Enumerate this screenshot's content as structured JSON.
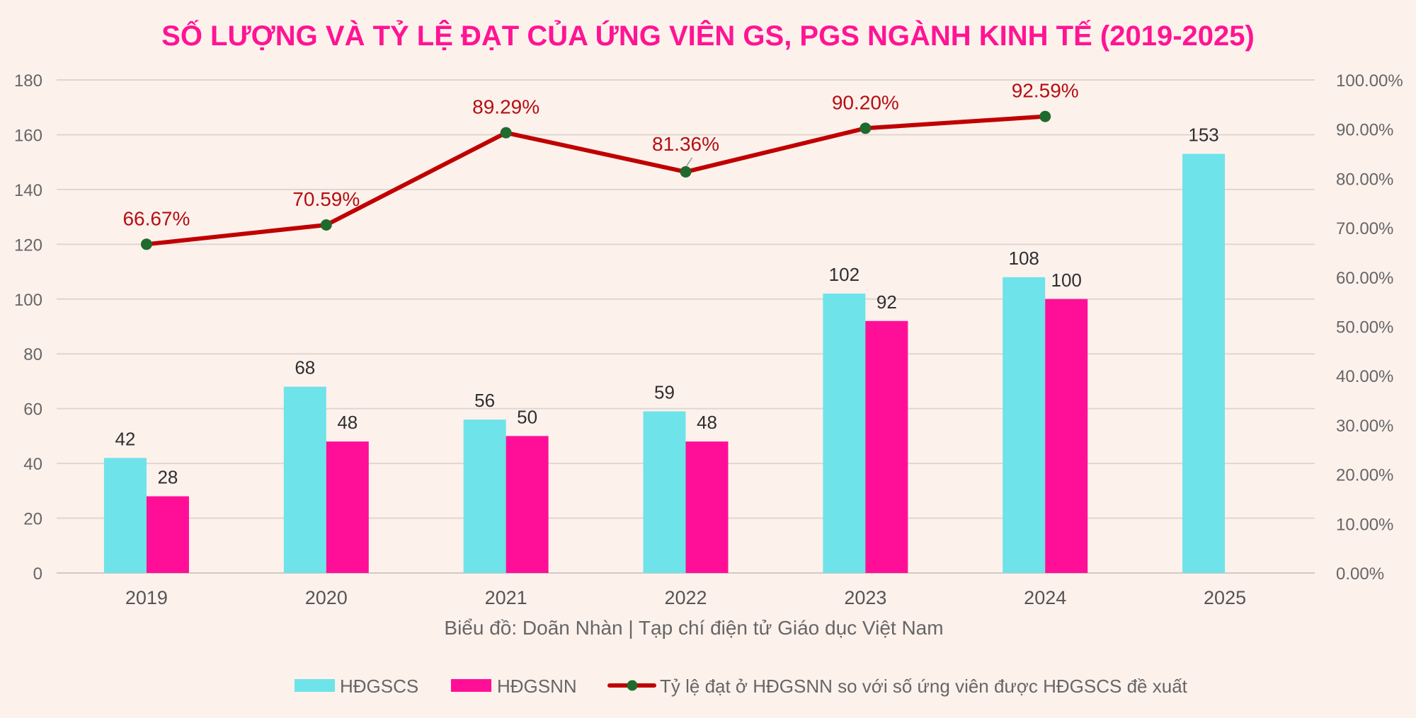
{
  "chart_data": {
    "type": "bar",
    "title": "SỐ LƯỢNG VÀ TỶ LỆ ĐẠT CỦA ỨNG VIÊN GS, PGS NGÀNH KINH TẾ (2019-2025)",
    "subtitle": "Biểu đồ: Doãn Nhàn | Tạp chí điện tử Giáo dục Việt Nam",
    "categories": [
      "2019",
      "2020",
      "2021",
      "2022",
      "2023",
      "2024",
      "2025"
    ],
    "y_left_ticks": [
      "0",
      "20",
      "40",
      "60",
      "80",
      "100",
      "120",
      "140",
      "160",
      "180"
    ],
    "y_right_ticks": [
      "0.00%",
      "10.00%",
      "20.00%",
      "30.00%",
      "40.00%",
      "50.00%",
      "60.00%",
      "70.00%",
      "80.00%",
      "90.00%",
      "100.00%"
    ],
    "ylim": [
      0,
      180
    ],
    "y2lim": [
      0,
      100
    ],
    "grid": true,
    "legend_position": "bottom",
    "series": [
      {
        "name": "HĐGSCS",
        "type": "bar",
        "axis": "left",
        "color": "#6ee3e9",
        "values": [
          42,
          68,
          56,
          59,
          102,
          108,
          153
        ],
        "labels": [
          "42",
          "68",
          "56",
          "59",
          "102",
          "108",
          "153"
        ]
      },
      {
        "name": "HĐGSNN",
        "type": "bar",
        "axis": "left",
        "color": "#ff0f98",
        "values": [
          28,
          48,
          50,
          48,
          92,
          100,
          null
        ],
        "labels": [
          "28",
          "48",
          "50",
          "48",
          "92",
          "100",
          ""
        ]
      },
      {
        "name": "Tỷ lệ đạt ở HĐGSNN so với số ứng viên được HĐGSCS đề xuất",
        "type": "line",
        "axis": "right",
        "color": "#c00000",
        "marker_color": "#1f6b2d",
        "values": [
          66.67,
          70.59,
          89.29,
          81.36,
          90.2,
          92.59,
          null
        ],
        "labels": [
          "66.67%",
          "70.59%",
          "89.29%",
          "81.36%",
          "90.20%",
          "92.59%",
          ""
        ]
      }
    ]
  }
}
